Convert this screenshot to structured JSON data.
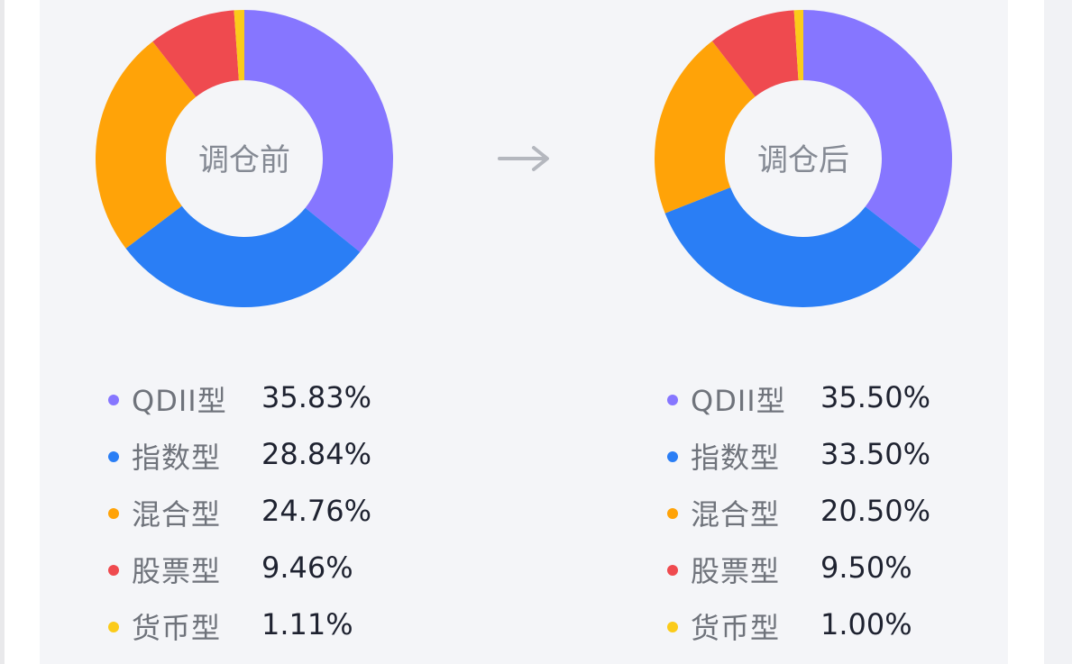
{
  "colors": {
    "QDII型": "#8676ff",
    "指数型": "#2a7ef5",
    "混合型": "#ffa308",
    "股票型": "#ef4a4f",
    "货币型": "#fbcb1a",
    "center_text": "#858a94",
    "arrow": "#b4b7be",
    "card_bg": "#f4f5f8"
  },
  "arrow_icon": "right-arrow-icon",
  "chart_data": [
    {
      "type": "pie",
      "donut": true,
      "center_label": "调仓前",
      "categories": [
        "QDII型",
        "指数型",
        "混合型",
        "股票型",
        "货币型"
      ],
      "values": [
        35.83,
        28.84,
        24.76,
        9.46,
        1.11
      ],
      "value_labels": [
        "35.83%",
        "28.84%",
        "24.76%",
        "9.46%",
        "1.11%"
      ],
      "start_angle_deg": 0,
      "direction": "clockwise",
      "legend_placement": "bottom"
    },
    {
      "type": "pie",
      "donut": true,
      "center_label": "调仓后",
      "categories": [
        "QDII型",
        "指数型",
        "混合型",
        "股票型",
        "货币型"
      ],
      "values": [
        35.5,
        33.5,
        20.5,
        9.5,
        1.0
      ],
      "value_labels": [
        "35.50%",
        "33.50%",
        "20.50%",
        "9.50%",
        "1.00%"
      ],
      "start_angle_deg": 0,
      "direction": "clockwise",
      "legend_placement": "bottom"
    }
  ]
}
